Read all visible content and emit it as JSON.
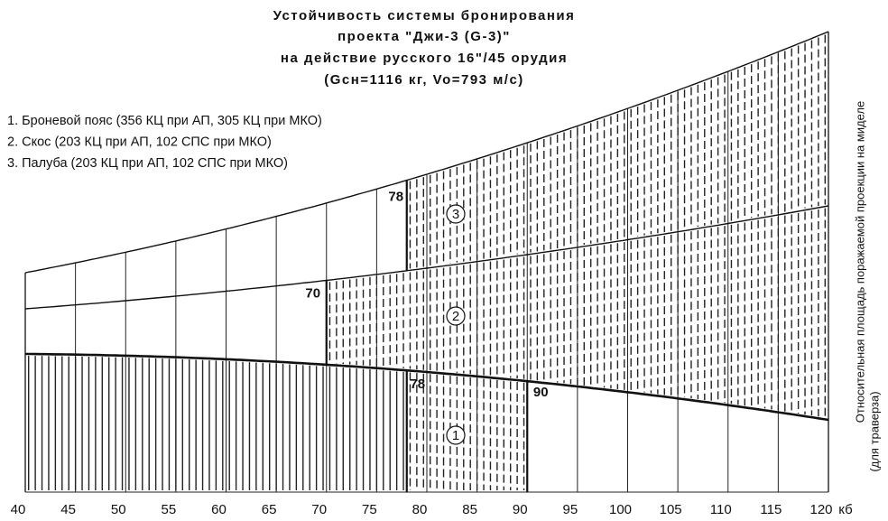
{
  "chart_data": {
    "type": "zone",
    "title": [
      "Устойчивость системы бронирования",
      "проекта \"Джи-3 (G-3)\"",
      "на действие русского 16\"/45 орудия",
      "(Gсн=1116 кг, Vo=793 м/с)"
    ],
    "legend": [
      "1. Броневой пояс (356 КЦ при АП, 305 КЦ при МКО)",
      "2. Скос    (203 КЦ при АП, 102 СПС при МКО)",
      "3. Палуба (203 КЦ при АП, 102 СПС при МКО)"
    ],
    "ylabel": [
      "Относительная площадь поражаемой проекции на миделе",
      "(для траверза)"
    ],
    "x_unit": "кб",
    "xlim": [
      40,
      120
    ],
    "xticks": [
      40,
      45,
      50,
      55,
      60,
      65,
      70,
      75,
      80,
      85,
      90,
      95,
      100,
      105,
      110,
      115,
      120
    ],
    "zones": [
      "1",
      "2",
      "3"
    ],
    "boundaries": [
      78,
      70,
      78,
      90
    ]
  }
}
